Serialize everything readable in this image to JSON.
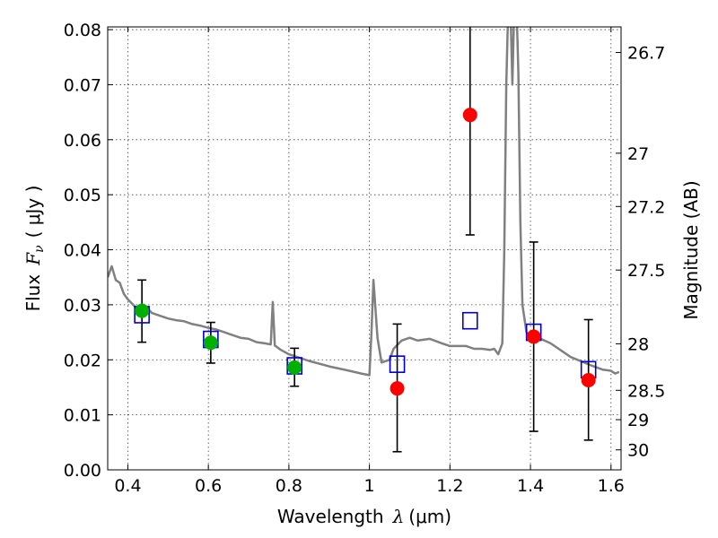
{
  "chart_data": {
    "type": "scatter",
    "xlabel_text": "Wavelength",
    "xlabel_symbol": "λ",
    "xlabel_unit": "(μm)",
    "ylabel_text": "Flux",
    "ylabel_symbol": "F",
    "ylabel_sub": "ν",
    "ylabel_unit": "( μJy )",
    "y2label": "Magnitude (AB)",
    "xlim": [
      0.35,
      1.625
    ],
    "ylim": [
      0,
      0.0805
    ],
    "x_ticks": [
      0.4,
      0.6,
      0.8,
      1.0,
      1.2,
      1.4,
      1.6
    ],
    "x_tick_labels": [
      "0.4",
      "0.6",
      "0.8",
      "1",
      "1.2",
      "1.4",
      "1.6"
    ],
    "y_ticks": [
      0,
      0.01,
      0.02,
      0.03,
      0.04,
      0.05,
      0.06,
      0.07,
      0.08
    ],
    "y_tick_labels": [
      "0.00",
      "0.01",
      "0.02",
      "0.03",
      "0.04",
      "0.05",
      "0.06",
      "0.07",
      "0.08"
    ],
    "y2_ticks": [
      26.7,
      27,
      27.2,
      27.5,
      28,
      28.5,
      29,
      30
    ],
    "y2_tick_labels": [
      "26.7",
      "27",
      "27.2",
      "27.5",
      "28",
      "28.5",
      "29",
      "30"
    ],
    "grid": true,
    "colors": {
      "model": "#808080",
      "detected": "#00b000",
      "undetected": "#ff0000",
      "model_box": "#0000cc",
      "errorbar": "#000000"
    },
    "model_spectrum": {
      "x": [
        0.35,
        0.36,
        0.37,
        0.38,
        0.39,
        0.4,
        0.42,
        0.44,
        0.46,
        0.48,
        0.5,
        0.52,
        0.54,
        0.56,
        0.58,
        0.6,
        0.62,
        0.64,
        0.66,
        0.68,
        0.7,
        0.72,
        0.74,
        0.755,
        0.76,
        0.765,
        0.78,
        0.8,
        0.85,
        0.9,
        0.95,
        0.98,
        1.0,
        1.005,
        1.01,
        1.02,
        1.03,
        1.05,
        1.06,
        1.08,
        1.1,
        1.12,
        1.15,
        1.18,
        1.2,
        1.22,
        1.24,
        1.26,
        1.28,
        1.3,
        1.31,
        1.32,
        1.33,
        1.335,
        1.34,
        1.345,
        1.35,
        1.355,
        1.36,
        1.365,
        1.37,
        1.375,
        1.38,
        1.39,
        1.4,
        1.42,
        1.45,
        1.5,
        1.55,
        1.58,
        1.6,
        1.61,
        1.62
      ],
      "y": [
        0.035,
        0.037,
        0.0345,
        0.034,
        0.032,
        0.031,
        0.0295,
        0.03,
        0.0285,
        0.028,
        0.0275,
        0.0272,
        0.027,
        0.0265,
        0.0262,
        0.0258,
        0.0255,
        0.025,
        0.0245,
        0.024,
        0.0238,
        0.0232,
        0.023,
        0.0228,
        0.0305,
        0.0226,
        0.0218,
        0.021,
        0.0198,
        0.0188,
        0.018,
        0.0175,
        0.0172,
        0.025,
        0.0345,
        0.024,
        0.0195,
        0.02,
        0.022,
        0.0235,
        0.024,
        0.0235,
        0.0238,
        0.023,
        0.0225,
        0.0225,
        0.0225,
        0.022,
        0.022,
        0.0218,
        0.022,
        0.021,
        0.023,
        0.04,
        0.07,
        0.085,
        0.085,
        0.07,
        0.085,
        0.085,
        0.072,
        0.045,
        0.03,
        0.025,
        0.024,
        0.024,
        0.023,
        0.0205,
        0.019,
        0.0182,
        0.018,
        0.0175,
        0.0178
      ]
    },
    "series": [
      {
        "marker": "circle",
        "color": "#00b000",
        "points": [
          {
            "x": 0.435,
            "y": 0.0289,
            "err_low": 0.0057,
            "err_high": 0.0056
          },
          {
            "x": 0.606,
            "y": 0.0231,
            "err_low": 0.0037,
            "err_high": 0.0037
          },
          {
            "x": 0.814,
            "y": 0.0186,
            "err_low": 0.0034,
            "err_high": 0.0035
          }
        ]
      },
      {
        "marker": "circle",
        "color": "#ff0000",
        "points": [
          {
            "x": 1.069,
            "y": 0.0148,
            "err_low": 0.0115,
            "err_high": 0.0117
          },
          {
            "x": 1.25,
            "y": 0.0645,
            "err_low": 0.0218,
            "err_high": 0.0165
          },
          {
            "x": 1.408,
            "y": 0.0242,
            "err_low": 0.0172,
            "err_high": 0.0172
          },
          {
            "x": 1.544,
            "y": 0.0163,
            "err_low": 0.0109,
            "err_high": 0.011
          }
        ]
      },
      {
        "marker": "square",
        "color": "#0000cc",
        "points": [
          {
            "x": 0.435,
            "y": 0.0282
          },
          {
            "x": 0.606,
            "y": 0.0237
          },
          {
            "x": 0.814,
            "y": 0.0189
          },
          {
            "x": 1.069,
            "y": 0.0192
          },
          {
            "x": 1.25,
            "y": 0.0271
          },
          {
            "x": 1.408,
            "y": 0.025
          },
          {
            "x": 1.544,
            "y": 0.0182
          }
        ]
      }
    ]
  }
}
